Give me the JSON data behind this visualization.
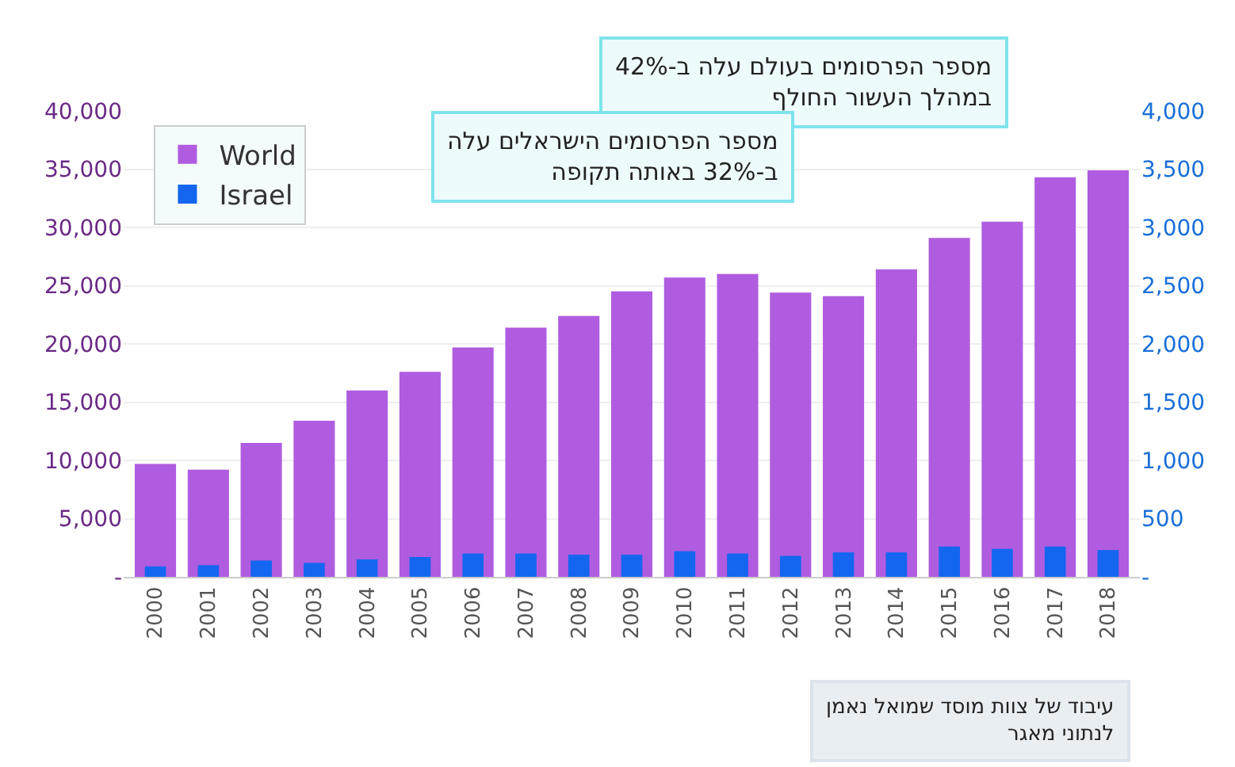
{
  "chart_data": {
    "type": "bar",
    "categories": [
      "2000",
      "2001",
      "2002",
      "2003",
      "2004",
      "2005",
      "2006",
      "2007",
      "2008",
      "2009",
      "2010",
      "2011",
      "2012",
      "2013",
      "2014",
      "2015",
      "2016",
      "2017",
      "2018"
    ],
    "series": [
      {
        "name": "World",
        "color": "#b05ce0",
        "values": [
          9700,
          9200,
          11500,
          13400,
          16000,
          17600,
          19700,
          21400,
          22400,
          24500,
          25700,
          26000,
          24400,
          24100,
          26400,
          29100,
          30500,
          34300,
          34900
        ]
      },
      {
        "name": "Israel",
        "color": "#1466f0",
        "axis": "y2",
        "values": [
          90,
          100,
          140,
          120,
          150,
          170,
          200,
          200,
          190,
          190,
          220,
          200,
          180,
          210,
          210,
          260,
          240,
          260,
          230
        ]
      }
    ],
    "ylim": [
      0,
      40000
    ],
    "yticks": [
      {
        "value": 0,
        "label": "-"
      },
      {
        "value": 5000,
        "label": "5,000"
      },
      {
        "value": 10000,
        "label": "10,000"
      },
      {
        "value": 15000,
        "label": "15,000"
      },
      {
        "value": 20000,
        "label": "20,000"
      },
      {
        "value": 25000,
        "label": "25,000"
      },
      {
        "value": 30000,
        "label": "30,000"
      },
      {
        "value": 35000,
        "label": "35,000"
      },
      {
        "value": 40000,
        "label": "40,000"
      }
    ],
    "y2lim": [
      0,
      4000
    ],
    "y2ticks": [
      {
        "value": 0,
        "label": "-"
      },
      500,
      {
        "value": 1000,
        "label": "1,000"
      },
      {
        "value": 1500,
        "label": "1,500"
      },
      {
        "value": 2000,
        "label": "2,000"
      },
      {
        "value": 2500,
        "label": "2,500"
      },
      {
        "value": 3000,
        "label": "3,000"
      },
      {
        "value": 3500,
        "label": "3,500"
      },
      {
        "value": 4000,
        "label": "4,000"
      }
    ],
    "grid": "y",
    "legend": "top left",
    "annotations": [
      "מספר הפרסומים בעולם עלה ב-42%\nבמהלך העשור החולף",
      "מספר הפרסומים הישראלים עלה\nב-32% באותה תקופה",
      "עיבוד של צוות מוסד שמואל נאמן\nלנתוני מאגר"
    ]
  }
}
